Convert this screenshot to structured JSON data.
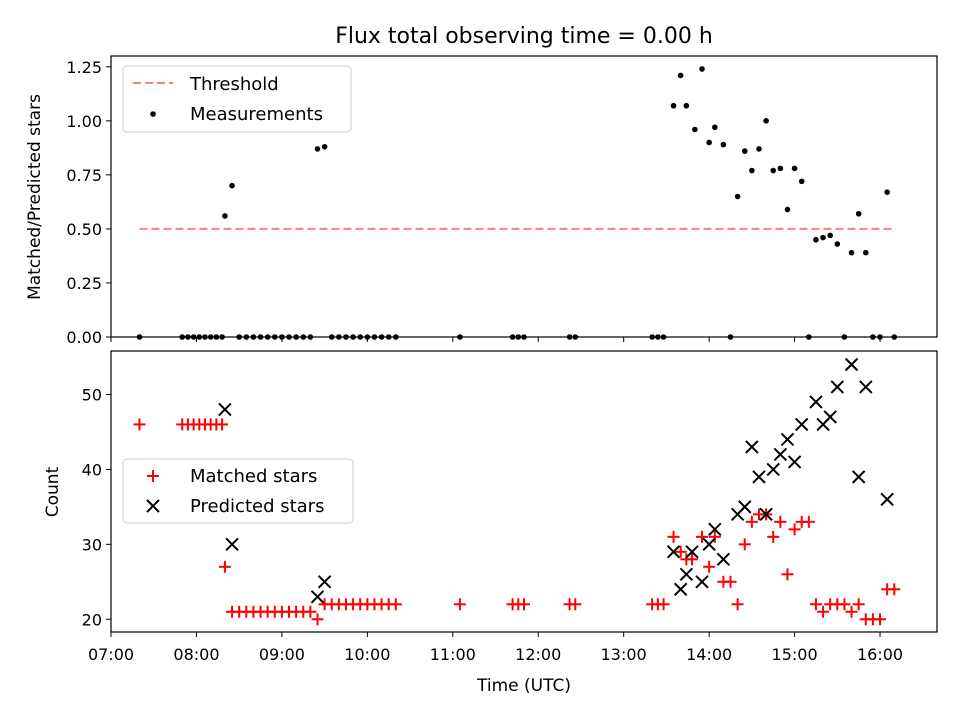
{
  "chart_data": [
    {
      "type": "scatter",
      "title": "Flux total observing time = 0.00 h",
      "xlabel": "",
      "ylabel": "Matched/Predicted stars",
      "xlim": [
        "07:00",
        "16:40"
      ],
      "ylim": [
        0,
        1.3
      ],
      "yticks": [
        "0.00",
        "0.25",
        "0.50",
        "0.75",
        "1.00",
        "1.25"
      ],
      "legend_position": "top-left",
      "threshold": {
        "name": "Threshold",
        "value": 0.5,
        "from": "07:20",
        "to": "16:10",
        "color": "#ff7f7f"
      },
      "series": [
        {
          "name": "Measurements",
          "color": "#000000",
          "points": [
            [
              "07:20",
              0
            ],
            [
              "07:50",
              0
            ],
            [
              "07:54",
              0
            ],
            [
              "07:58",
              0
            ],
            [
              "08:02",
              0
            ],
            [
              "08:06",
              0
            ],
            [
              "08:10",
              0
            ],
            [
              "08:14",
              0
            ],
            [
              "08:18",
              0
            ],
            [
              "08:20",
              0.56
            ],
            [
              "08:25",
              0.7
            ],
            [
              "08:30",
              0
            ],
            [
              "08:35",
              0
            ],
            [
              "08:40",
              0
            ],
            [
              "08:45",
              0
            ],
            [
              "08:50",
              0
            ],
            [
              "08:55",
              0
            ],
            [
              "09:00",
              0
            ],
            [
              "09:05",
              0
            ],
            [
              "09:10",
              0
            ],
            [
              "09:15",
              0
            ],
            [
              "09:20",
              0
            ],
            [
              "09:25",
              0.87
            ],
            [
              "09:30",
              0.88
            ],
            [
              "09:35",
              0
            ],
            [
              "09:40",
              0
            ],
            [
              "09:45",
              0
            ],
            [
              "09:50",
              0
            ],
            [
              "09:55",
              0
            ],
            [
              "10:00",
              0
            ],
            [
              "10:05",
              0
            ],
            [
              "10:10",
              0
            ],
            [
              "10:15",
              0
            ],
            [
              "10:20",
              0
            ],
            [
              "11:05",
              0
            ],
            [
              "11:42",
              0
            ],
            [
              "11:46",
              0
            ],
            [
              "11:50",
              0
            ],
            [
              "12:22",
              0
            ],
            [
              "12:26",
              0
            ],
            [
              "13:20",
              0
            ],
            [
              "13:24",
              0
            ],
            [
              "13:28",
              0
            ],
            [
              "13:35",
              1.07
            ],
            [
              "13:40",
              1.21
            ],
            [
              "13:44",
              1.07
            ],
            [
              "13:50",
              0.96
            ],
            [
              "13:55",
              1.24
            ],
            [
              "14:00",
              0.9
            ],
            [
              "14:04",
              0.97
            ],
            [
              "14:10",
              0.89
            ],
            [
              "14:15",
              0
            ],
            [
              "14:20",
              0.65
            ],
            [
              "14:25",
              0.86
            ],
            [
              "14:30",
              0.77
            ],
            [
              "14:35",
              0.87
            ],
            [
              "14:40",
              1.0
            ],
            [
              "14:45",
              0.77
            ],
            [
              "14:50",
              0.78
            ],
            [
              "14:55",
              0.59
            ],
            [
              "15:00",
              0.78
            ],
            [
              "15:05",
              0.72
            ],
            [
              "15:10",
              0
            ],
            [
              "15:15",
              0.45
            ],
            [
              "15:20",
              0.46
            ],
            [
              "15:25",
              0.47
            ],
            [
              "15:30",
              0.43
            ],
            [
              "15:35",
              0
            ],
            [
              "15:40",
              0.39
            ],
            [
              "15:45",
              0.57
            ],
            [
              "15:50",
              0.39
            ],
            [
              "15:55",
              0
            ],
            [
              "16:00",
              0
            ],
            [
              "16:05",
              0.67
            ],
            [
              "16:10",
              0
            ]
          ]
        }
      ]
    },
    {
      "type": "scatter",
      "title": "",
      "xlabel": "Time (UTC)",
      "ylabel": "Count",
      "xlim": [
        "07:00",
        "16:40"
      ],
      "ylim": [
        18.3,
        55.8
      ],
      "yticks": [
        "20",
        "30",
        "40",
        "50"
      ],
      "xticks": [
        "07:00",
        "08:00",
        "09:00",
        "10:00",
        "11:00",
        "12:00",
        "13:00",
        "14:00",
        "15:00",
        "16:00"
      ],
      "legend_position": "center-left",
      "series": [
        {
          "name": "Matched stars",
          "marker": "plus",
          "color": "#ff0000",
          "points": [
            [
              "07:20",
              46
            ],
            [
              "07:50",
              46
            ],
            [
              "07:54",
              46
            ],
            [
              "07:58",
              46
            ],
            [
              "08:02",
              46
            ],
            [
              "08:06",
              46
            ],
            [
              "08:10",
              46
            ],
            [
              "08:14",
              46
            ],
            [
              "08:18",
              46
            ],
            [
              "08:20",
              27
            ],
            [
              "08:25",
              21
            ],
            [
              "08:30",
              21
            ],
            [
              "08:35",
              21
            ],
            [
              "08:40",
              21
            ],
            [
              "08:45",
              21
            ],
            [
              "08:50",
              21
            ],
            [
              "08:55",
              21
            ],
            [
              "09:00",
              21
            ],
            [
              "09:05",
              21
            ],
            [
              "09:10",
              21
            ],
            [
              "09:15",
              21
            ],
            [
              "09:20",
              21
            ],
            [
              "09:25",
              20
            ],
            [
              "09:30",
              22
            ],
            [
              "09:35",
              22
            ],
            [
              "09:40",
              22
            ],
            [
              "09:45",
              22
            ],
            [
              "09:50",
              22
            ],
            [
              "09:55",
              22
            ],
            [
              "10:00",
              22
            ],
            [
              "10:05",
              22
            ],
            [
              "10:10",
              22
            ],
            [
              "10:15",
              22
            ],
            [
              "10:20",
              22
            ],
            [
              "11:05",
              22
            ],
            [
              "11:42",
              22
            ],
            [
              "11:46",
              22
            ],
            [
              "11:50",
              22
            ],
            [
              "12:22",
              22
            ],
            [
              "12:26",
              22
            ],
            [
              "13:20",
              22
            ],
            [
              "13:24",
              22
            ],
            [
              "13:28",
              22
            ],
            [
              "13:35",
              31
            ],
            [
              "13:40",
              29
            ],
            [
              "13:44",
              28
            ],
            [
              "13:48",
              28
            ],
            [
              "13:55",
              31
            ],
            [
              "14:00",
              27
            ],
            [
              "14:04",
              31
            ],
            [
              "14:10",
              25
            ],
            [
              "14:15",
              25
            ],
            [
              "14:20",
              22
            ],
            [
              "14:25",
              30
            ],
            [
              "14:30",
              33
            ],
            [
              "14:35",
              34
            ],
            [
              "14:40",
              34
            ],
            [
              "14:45",
              31
            ],
            [
              "14:50",
              33
            ],
            [
              "14:55",
              26
            ],
            [
              "15:00",
              32
            ],
            [
              "15:05",
              33
            ],
            [
              "15:10",
              33
            ],
            [
              "15:15",
              22
            ],
            [
              "15:20",
              21
            ],
            [
              "15:25",
              22
            ],
            [
              "15:30",
              22
            ],
            [
              "15:35",
              22
            ],
            [
              "15:40",
              21
            ],
            [
              "15:45",
              22
            ],
            [
              "15:50",
              20
            ],
            [
              "15:55",
              20
            ],
            [
              "16:00",
              20
            ],
            [
              "16:05",
              24
            ],
            [
              "16:10",
              24
            ]
          ]
        },
        {
          "name": "Predicted stars",
          "marker": "x",
          "color": "#000000",
          "points": [
            [
              "08:20",
              48
            ],
            [
              "08:25",
              30
            ],
            [
              "09:25",
              23
            ],
            [
              "09:30",
              25
            ],
            [
              "13:35",
              29
            ],
            [
              "13:40",
              24
            ],
            [
              "13:44",
              26
            ],
            [
              "13:48",
              29
            ],
            [
              "13:55",
              25
            ],
            [
              "14:00",
              30
            ],
            [
              "14:04",
              32
            ],
            [
              "14:10",
              28
            ],
            [
              "14:20",
              34
            ],
            [
              "14:25",
              35
            ],
            [
              "14:30",
              43
            ],
            [
              "14:35",
              39
            ],
            [
              "14:40",
              34
            ],
            [
              "14:45",
              40
            ],
            [
              "14:50",
              42
            ],
            [
              "14:55",
              44
            ],
            [
              "15:00",
              41
            ],
            [
              "15:05",
              46
            ],
            [
              "15:15",
              49
            ],
            [
              "15:20",
              46
            ],
            [
              "15:25",
              47
            ],
            [
              "15:30",
              51
            ],
            [
              "15:40",
              54
            ],
            [
              "15:45",
              39
            ],
            [
              "15:50",
              51
            ],
            [
              "16:05",
              36
            ]
          ]
        }
      ]
    }
  ]
}
